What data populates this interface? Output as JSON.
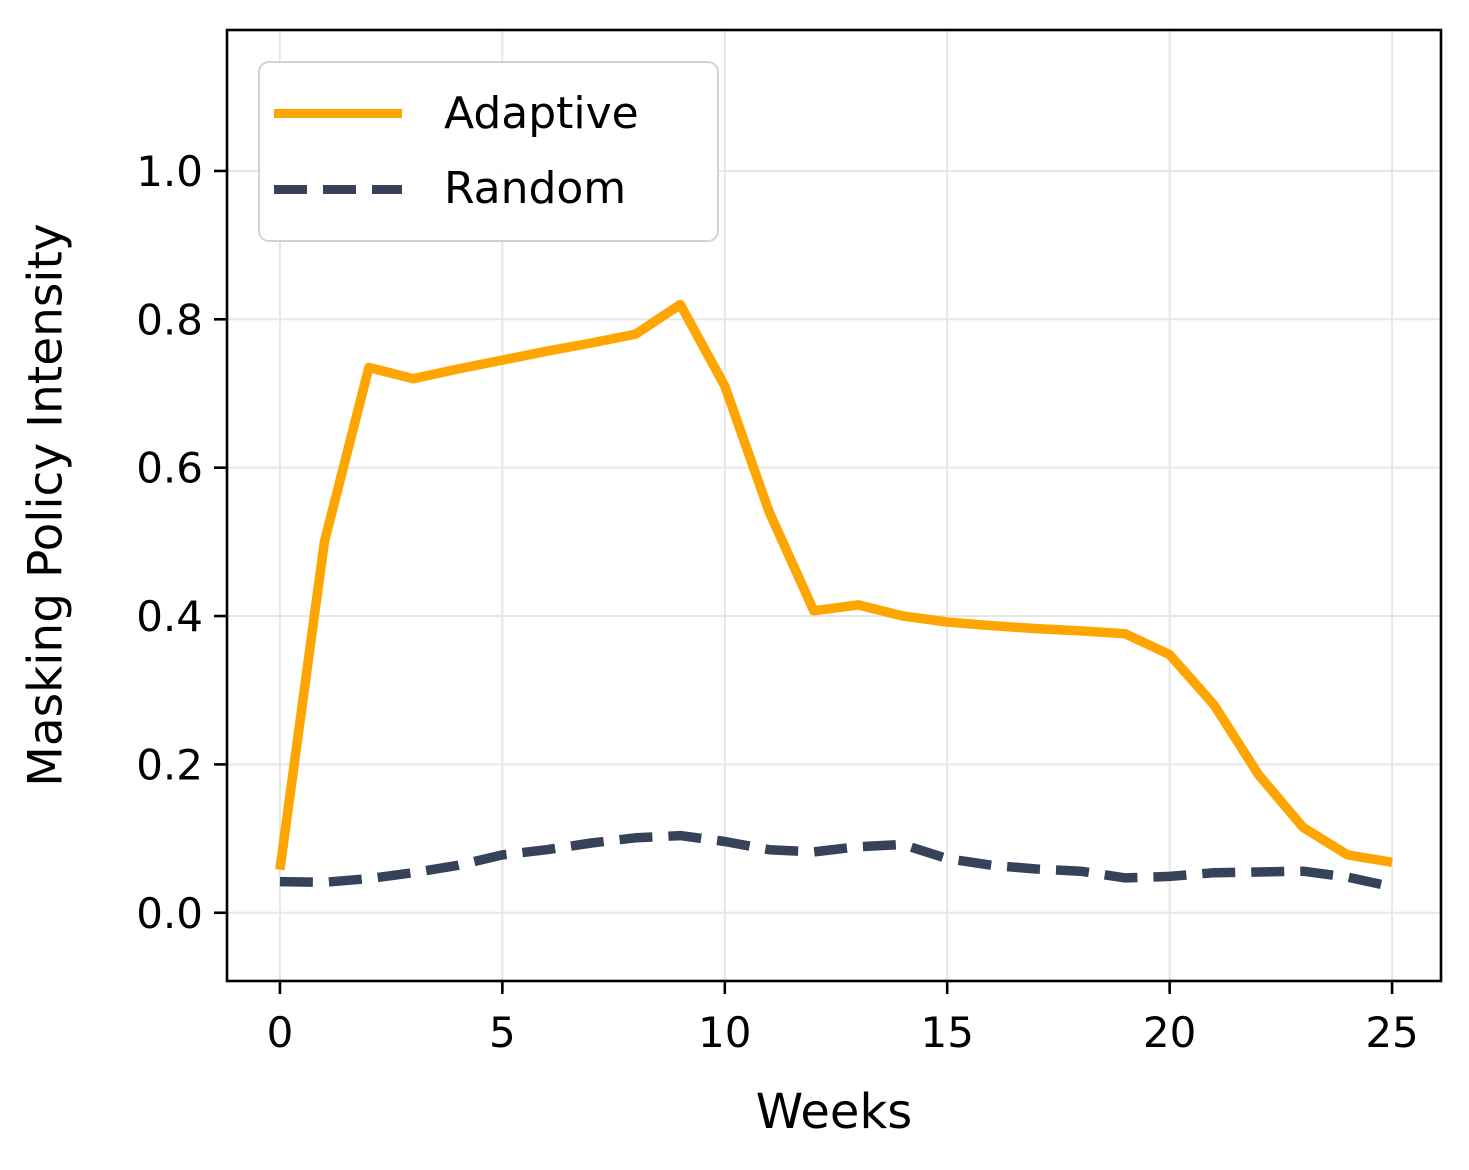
{
  "figure": {
    "background": "#ffffff",
    "text_color": "#000000"
  },
  "chart_data": {
    "type": "line",
    "title": "",
    "xlabel": "Weeks",
    "ylabel": "Masking Policy Intensity",
    "x_tick_labels": [
      "0",
      "5",
      "10",
      "15",
      "20",
      "25"
    ],
    "x_ticks": [
      0,
      5,
      10,
      15,
      20,
      25
    ],
    "y_tick_labels": [
      "0.0",
      "0.2",
      "0.4",
      "0.6",
      "0.8",
      "1.0"
    ],
    "y_ticks": [
      0.0,
      0.2,
      0.4,
      0.6,
      0.8,
      1.0
    ],
    "xlim": [
      -1.19,
      26.1
    ],
    "ylim": [
      -0.092,
      1.19
    ],
    "grid": true,
    "grid_color": "#e6e6e6",
    "spine_color": "#000000",
    "legend": {
      "position": "upper-left",
      "entries": [
        {
          "label": "Adaptive",
          "color": "#FFA500",
          "style": "solid"
        },
        {
          "label": "Random",
          "color": "#36425A",
          "style": "dashed"
        }
      ]
    },
    "x": [
      0,
      1,
      2,
      3,
      4,
      5,
      6,
      7,
      8,
      9,
      10,
      11,
      12,
      13,
      14,
      15,
      16,
      17,
      18,
      19,
      20,
      21,
      22,
      23,
      24,
      25
    ],
    "series": [
      {
        "name": "Adaptive",
        "color": "#FFA500",
        "style": "solid",
        "linewidth": 9.5,
        "values": [
          0.058,
          0.5,
          0.735,
          0.72,
          0.733,
          0.745,
          0.757,
          0.768,
          0.78,
          0.82,
          0.71,
          0.54,
          0.407,
          0.415,
          0.4,
          0.392,
          0.387,
          0.383,
          0.38,
          0.376,
          0.348,
          0.28,
          0.186,
          0.115,
          0.078,
          0.068
        ]
      },
      {
        "name": "Random",
        "color": "#36425A",
        "style": "dashed",
        "linewidth": 9.5,
        "values": [
          0.042,
          0.041,
          0.046,
          0.054,
          0.064,
          0.078,
          0.085,
          0.094,
          0.101,
          0.104,
          0.096,
          0.085,
          0.082,
          0.089,
          0.092,
          0.073,
          0.064,
          0.059,
          0.056,
          0.047,
          0.049,
          0.054,
          0.055,
          0.056,
          0.048,
          0.035
        ]
      }
    ]
  }
}
